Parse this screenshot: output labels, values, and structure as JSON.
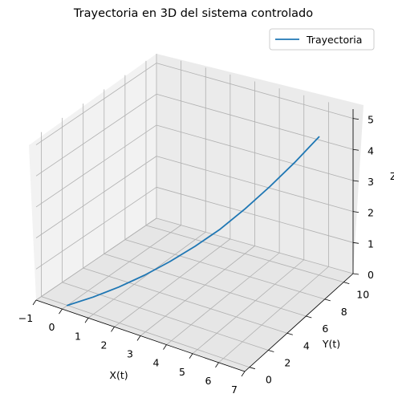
{
  "chart_data": {
    "type": "line3d",
    "title": "Trayectoria en 3D del sistema controlado",
    "xlabel": "X(t)",
    "ylabel": "Y(t)",
    "zlabel": "Z",
    "xlim": [
      -1,
      7
    ],
    "ylim": [
      -0.5,
      11
    ],
    "zlim": [
      0,
      5.3
    ],
    "x_ticks": [
      "−1",
      "0",
      "1",
      "2",
      "3",
      "4",
      "5",
      "6",
      "7"
    ],
    "y_ticks": [
      "0",
      "2",
      "4",
      "6",
      "8",
      "10"
    ],
    "z_ticks": [
      "0",
      "1",
      "2",
      "3",
      "4",
      "5"
    ],
    "grid": true,
    "legend_position": "top-right",
    "series": [
      {
        "name": "Trayectoria",
        "color": "#1f77b4",
        "x": [
          0.0,
          0.6,
          1.2,
          1.8,
          2.4,
          3.0,
          3.6,
          4.2,
          4.8,
          5.4,
          6.0
        ],
        "y": [
          0.0,
          1.0,
          2.0,
          3.0,
          4.0,
          5.0,
          6.0,
          7.0,
          8.0,
          9.0,
          10.0
        ],
        "z": [
          0.0,
          0.2,
          0.45,
          0.75,
          1.1,
          1.5,
          1.95,
          2.5,
          3.1,
          3.75,
          4.45
        ]
      }
    ]
  }
}
